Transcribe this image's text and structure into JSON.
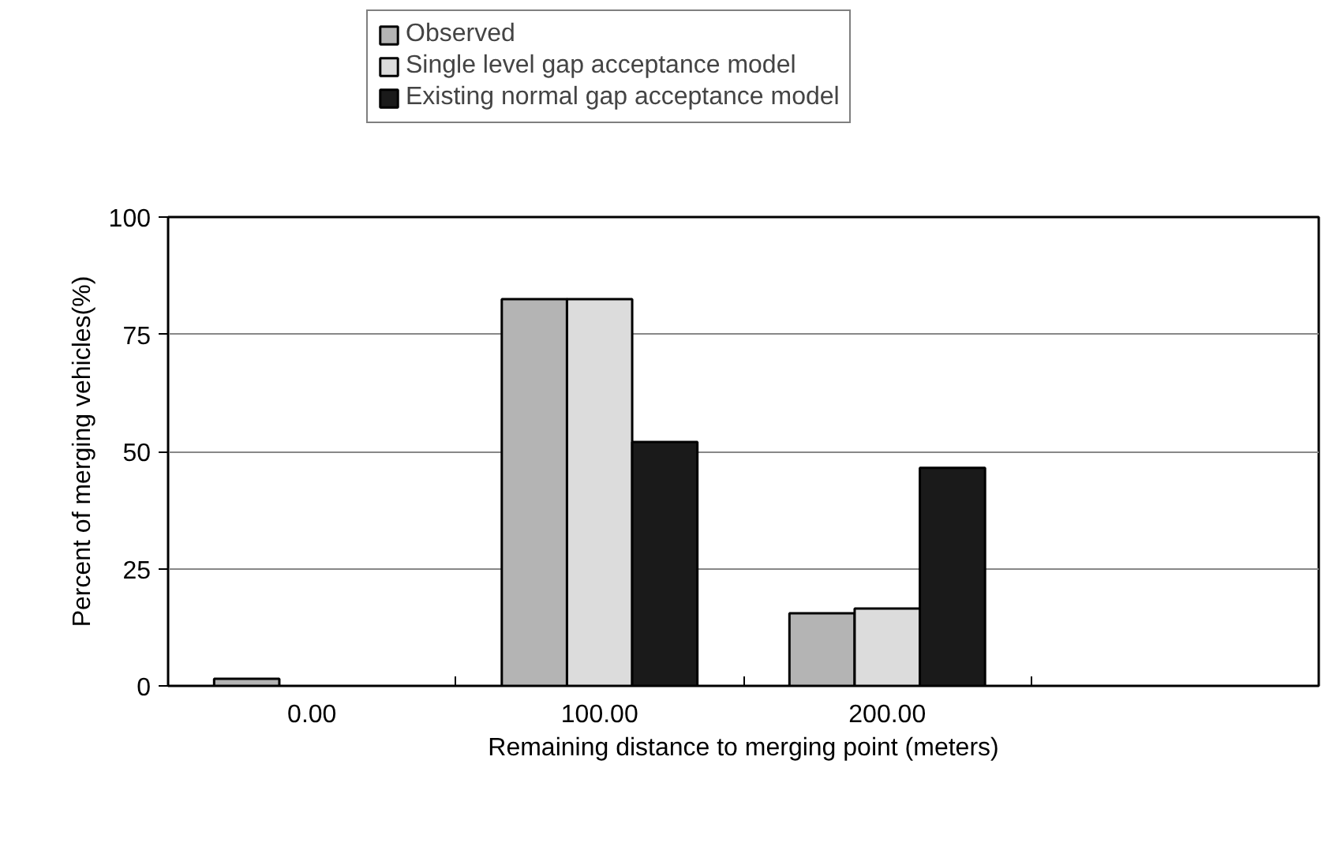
{
  "chart_data": {
    "type": "bar",
    "xlabel": "Remaining distance to merging point (meters)",
    "ylabel": "Percent of merging vehicles(%)",
    "categories": [
      "0.00",
      "100.00",
      "200.00",
      null
    ],
    "series": [
      {
        "name": "Observed",
        "color": "#b4b4b4",
        "values": [
          1.5,
          82.5,
          15.5,
          null
        ]
      },
      {
        "name": "Single level gap acceptance model",
        "color": "#dcdcdc",
        "values": [
          null,
          82.5,
          16.5,
          null
        ]
      },
      {
        "name": "Existing normal gap acceptance model",
        "color": "#1a1a1a",
        "values": [
          null,
          52,
          46.5,
          null
        ]
      }
    ],
    "ylim": [
      0,
      100
    ],
    "yticks": [
      0,
      25,
      50,
      75,
      100
    ],
    "grid": "y",
    "legend": "top"
  }
}
